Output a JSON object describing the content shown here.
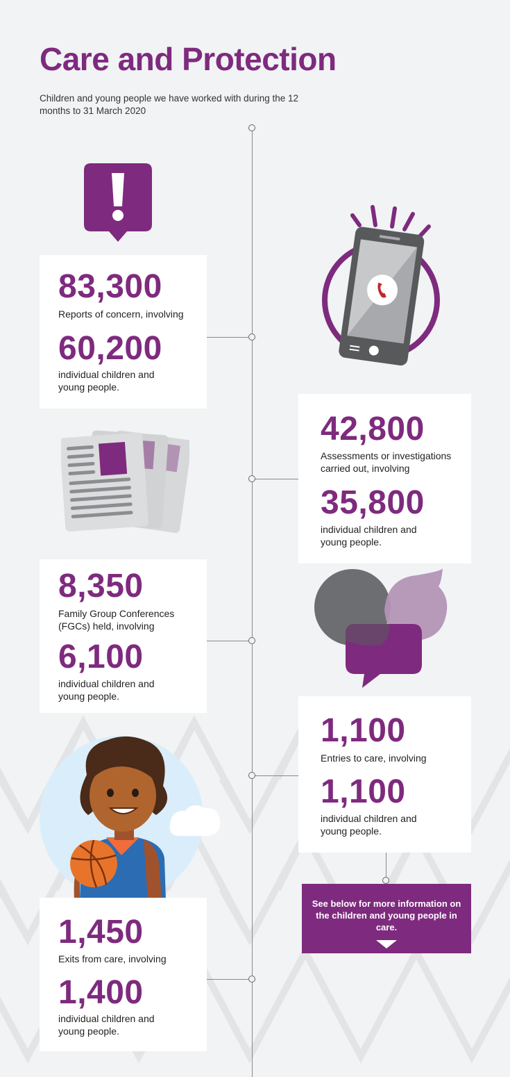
{
  "header": {
    "title": "Care and Protection",
    "subtitle": "Children and young people we have worked with during the 12 months to 31 March 2020"
  },
  "stats": {
    "reports": {
      "value": "83,300",
      "label": "Reports of concern, involving",
      "children_value": "60,200",
      "children_label": "individual children and young people."
    },
    "assessments": {
      "value": "42,800",
      "label": "Assessments or investigations carried out, involving",
      "children_value": "35,800",
      "children_label": "individual children and young people."
    },
    "fgcs": {
      "value": "8,350",
      "label": "Family Group Conferences (FGCs) held, involving",
      "children_value": "6,100",
      "children_label": "individual children and young people."
    },
    "entries": {
      "value": "1,100",
      "label": "Entries to care, involving",
      "children_value": "1,100",
      "children_label": "individual children and young people."
    },
    "exits": {
      "value": "1,450",
      "label": "Exits from care, involving",
      "children_value": "1,400",
      "children_label": "individual children and young people."
    }
  },
  "note": {
    "text": "See below for more information on the children and young people in care."
  },
  "icons": [
    "alert-icon",
    "phone-icon",
    "newspaper-icon",
    "speech-bubbles-icon",
    "basketball-person-icon"
  ],
  "colors": {
    "accent": "#7e2a7e",
    "background": "#f1f3f4",
    "card": "#ffffff"
  }
}
